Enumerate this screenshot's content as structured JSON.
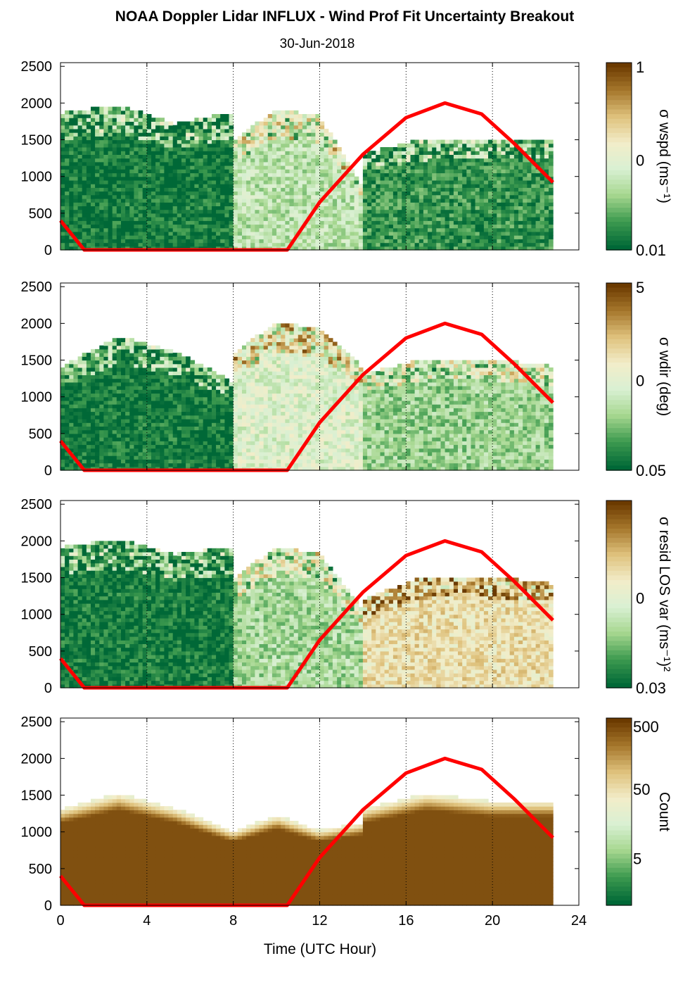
{
  "title": "NOAA Doppler Lidar INFLUX - Wind Prof Fit Uncertainty Breakout",
  "subtitle": "30-Jun-2018",
  "chart_data": [
    {
      "type": "heatmap",
      "colorbar_label": "σ wspd (ms⁻¹)",
      "colorbar_ticks": [
        "1",
        "0",
        "0.01"
      ],
      "xlim": [
        0,
        24
      ],
      "ylim": [
        0,
        2550
      ],
      "yticks": [
        0,
        500,
        1000,
        1500,
        2000,
        2500
      ],
      "regions": [
        {
          "x": [
            0,
            8
          ],
          "y_top": [
            1850,
            1950,
            1700,
            1850
          ],
          "level": 0.05
        },
        {
          "x": [
            8,
            14
          ],
          "y_top": [
            1500,
            1900,
            1800,
            900
          ],
          "level": 0.35
        },
        {
          "x": [
            14,
            22.8
          ],
          "y_top": [
            1300,
            1500,
            1500,
            1500
          ],
          "level": 0.12
        }
      ]
    },
    {
      "type": "heatmap",
      "colorbar_label": "σ wdir (deg)",
      "colorbar_ticks": [
        "5",
        "0",
        "0.05"
      ],
      "xlim": [
        0,
        24
      ],
      "ylim": [
        0,
        2550
      ],
      "yticks": [
        0,
        500,
        1000,
        1500,
        2000,
        2500
      ],
      "regions": [
        {
          "x": [
            0,
            8
          ],
          "y_top": [
            1400,
            1800,
            1600,
            1200
          ],
          "level": 0.05
        },
        {
          "x": [
            8,
            14
          ],
          "y_top": [
            1600,
            2000,
            1900,
            1400
          ],
          "level": 0.45
        },
        {
          "x": [
            14,
            22.8
          ],
          "y_top": [
            1300,
            1500,
            1500,
            1400
          ],
          "level": 0.28
        }
      ]
    },
    {
      "type": "heatmap",
      "colorbar_label": "σ resid LOS var (ms⁻¹)²",
      "colorbar_ticks": [
        "0",
        "0.03"
      ],
      "xlim": [
        0,
        24
      ],
      "ylim": [
        0,
        2550
      ],
      "yticks": [
        0,
        500,
        1000,
        1500,
        2000,
        2500
      ],
      "regions": [
        {
          "x": [
            0,
            8
          ],
          "y_top": [
            1900,
            2000,
            1800,
            1900
          ],
          "level": 0.05
        },
        {
          "x": [
            8,
            14
          ],
          "y_top": [
            1500,
            1900,
            1800,
            1100
          ],
          "level": 0.3
        },
        {
          "x": [
            14,
            22.8
          ],
          "y_top": [
            1200,
            1500,
            1500,
            1400
          ],
          "level": 0.62
        }
      ]
    },
    {
      "type": "heatmap",
      "colorbar_label": "Count",
      "colorbar_ticks": [
        "500",
        "50",
        "5"
      ],
      "xlim": [
        0,
        24
      ],
      "ylim": [
        0,
        2550
      ],
      "yticks": [
        0,
        500,
        1000,
        1500,
        2000,
        2500
      ],
      "regions": [
        {
          "x": [
            0,
            8
          ],
          "y_top": [
            1300,
            1500,
            1300,
            1000
          ],
          "level": 0.95
        },
        {
          "x": [
            8,
            14
          ],
          "y_top": [
            1000,
            1200,
            1000,
            1100
          ],
          "level": 0.95
        },
        {
          "x": [
            14,
            22.8
          ],
          "y_top": [
            1300,
            1500,
            1400,
            1400
          ],
          "level": 0.95
        }
      ]
    }
  ],
  "overlay_line": {
    "color": "#ff0000",
    "x": [
      0,
      1.1,
      10.5,
      12,
      14,
      16,
      17.8,
      19.5,
      21,
      22.8
    ],
    "y": [
      400,
      0,
      0,
      650,
      1300,
      1800,
      2000,
      1850,
      1450,
      920
    ]
  },
  "x_axis": {
    "label": "Time (UTC Hour)",
    "ticks": [
      0,
      4,
      8,
      12,
      16,
      20,
      24
    ]
  },
  "colors": {
    "dark_green": "#006837",
    "light_green": "#d9f0d3",
    "tan": "#dfc27d",
    "dark_brown": "#6b3a00"
  }
}
